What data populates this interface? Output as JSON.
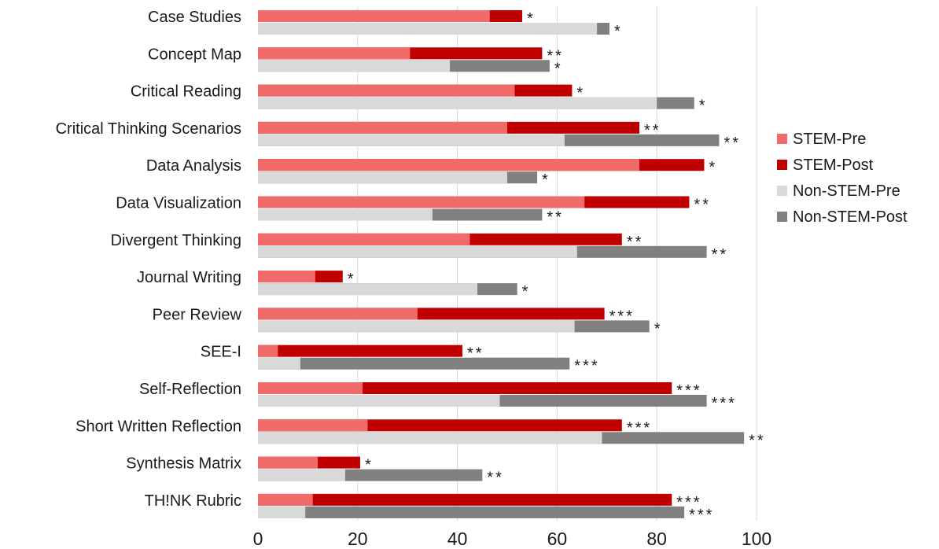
{
  "chart_data": {
    "type": "bar",
    "orientation": "horizontal",
    "stacked_pre_post": true,
    "categories": [
      "Case Studies",
      "Concept Map",
      "Critical Reading",
      "Critical Thinking Scenarios",
      "Data Analysis",
      "Data Visualization",
      "Divergent Thinking",
      "Journal Writing",
      "Peer Review",
      "SEE-I",
      "Self-Reflection",
      "Short Written Reflection",
      "Synthesis Matrix",
      "TH!NK Rubric"
    ],
    "series": [
      {
        "name": "STEM-Pre",
        "color": "#f26b6b",
        "values": [
          46.5,
          30.5,
          51.5,
          50,
          76.5,
          65.5,
          42.5,
          11.5,
          32,
          4,
          21,
          22,
          12,
          11
        ]
      },
      {
        "name": "STEM-Post",
        "color": "#c00000",
        "values": [
          53,
          57,
          63,
          76.5,
          89.5,
          86.5,
          73,
          17,
          69.5,
          41,
          83,
          73,
          20.5,
          83
        ]
      },
      {
        "name": "Non-STEM-Pre",
        "color": "#d9d9d9",
        "values": [
          68,
          38.5,
          80,
          61.5,
          50,
          35,
          64,
          44,
          63.5,
          8.5,
          48.5,
          69,
          17.5,
          9.5
        ]
      },
      {
        "name": "Non-STEM-Post",
        "color": "#808080",
        "values": [
          70.5,
          58.5,
          87.5,
          92.5,
          56,
          57,
          90,
          52,
          78.5,
          62.5,
          90,
          97.5,
          45,
          85.5
        ]
      }
    ],
    "significance": {
      "stem": [
        "*",
        "**",
        "*",
        "**",
        "*",
        "**",
        "**",
        "*",
        "***",
        "**",
        "***",
        "***",
        "*",
        "***"
      ],
      "non_stem": [
        "*",
        "*",
        "*",
        "**",
        "*",
        "**",
        "**",
        "*",
        "*",
        "***",
        "***",
        "**",
        "**",
        "***"
      ]
    },
    "xlim": [
      0,
      100
    ],
    "xticks": [
      "0",
      "20",
      "40",
      "60",
      "80",
      "100"
    ],
    "grid": true,
    "legend_position": "right"
  }
}
